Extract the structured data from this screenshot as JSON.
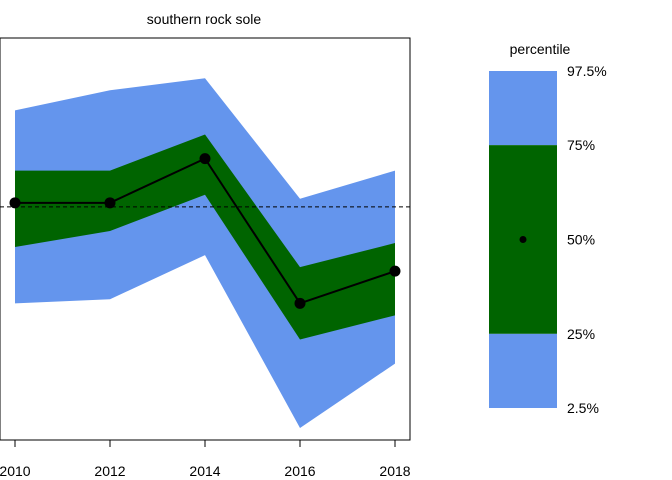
{
  "chart_data": {
    "type": "area",
    "title": "southern rock sole",
    "x": [
      2010,
      2012,
      2014,
      2016,
      2018
    ],
    "x_ticks": [
      "2010",
      "2012",
      "2014",
      "2016",
      "2018"
    ],
    "xlim": [
      2010,
      2018
    ],
    "ylim": [
      0,
      1
    ],
    "y_axis_labels": "none",
    "grid": false,
    "reference_line": {
      "style": "dashed",
      "value": 0.58
    },
    "series": [
      {
        "band": "2.5%-97.5%",
        "color": "#6495ED",
        "lower": [
          0.34,
          0.35,
          0.46,
          0.03,
          0.19
        ],
        "upper": [
          0.82,
          0.87,
          0.9,
          0.6,
          0.67
        ]
      },
      {
        "band": "25%-75%",
        "color": "#006400",
        "lower": [
          0.48,
          0.52,
          0.61,
          0.25,
          0.31
        ],
        "upper": [
          0.67,
          0.67,
          0.76,
          0.43,
          0.49
        ]
      },
      {
        "band": "50%",
        "color": "#000000",
        "values": [
          0.59,
          0.59,
          0.7,
          0.34,
          0.42
        ]
      }
    ],
    "legend": {
      "title": "percentile",
      "placement": "right",
      "labels": [
        "97.5%",
        "75%",
        "50%",
        "25%",
        "2.5%"
      ],
      "colors": {
        "outer": "#6495ED",
        "inner": "#006400",
        "median": "#000000"
      }
    }
  }
}
